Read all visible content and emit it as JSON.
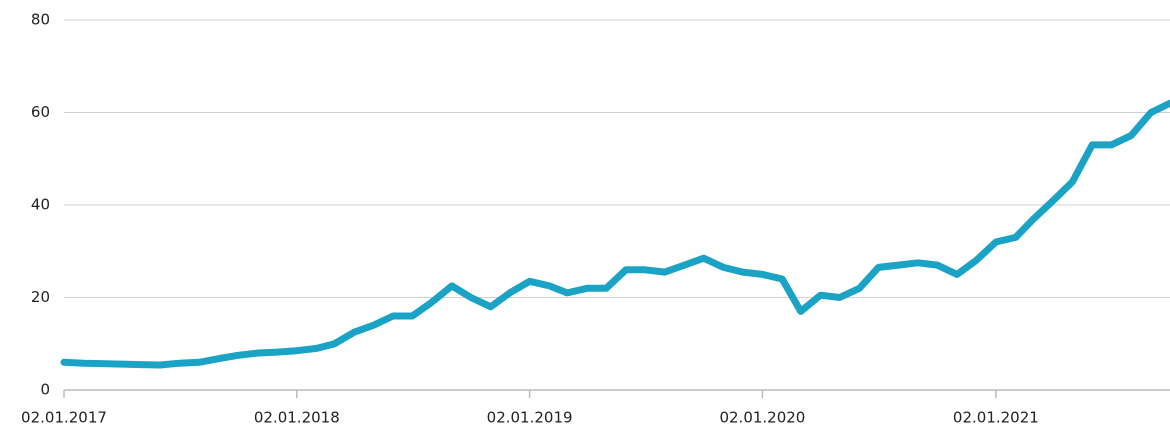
{
  "chart_data": {
    "type": "line",
    "x": [
      "02.01.2017",
      "02.02.2017",
      "02.03.2017",
      "02.04.2017",
      "02.05.2017",
      "02.06.2017",
      "02.07.2017",
      "02.08.2017",
      "02.09.2017",
      "02.10.2017",
      "02.11.2017",
      "02.12.2017",
      "02.01.2018",
      "02.02.2018",
      "02.03.2018",
      "02.04.2018",
      "02.05.2018",
      "02.06.2018",
      "02.07.2018",
      "02.08.2018",
      "02.09.2018",
      "02.10.2018",
      "02.11.2018",
      "02.12.2018",
      "02.01.2019",
      "02.02.2019",
      "02.03.2019",
      "02.04.2019",
      "02.05.2019",
      "02.06.2019",
      "02.07.2019",
      "02.08.2019",
      "02.09.2019",
      "02.10.2019",
      "02.11.2019",
      "02.12.2019",
      "02.01.2020",
      "02.02.2020",
      "02.03.2020",
      "02.04.2020",
      "02.05.2020",
      "02.06.2020",
      "02.07.2020",
      "02.08.2020",
      "02.09.2020",
      "02.10.2020",
      "02.11.2020",
      "02.12.2020",
      "02.01.2021",
      "02.02.2021",
      "02.03.2021",
      "02.04.2021",
      "02.05.2021",
      "02.06.2021",
      "02.07.2021",
      "02.08.2021",
      "02.09.2021",
      "02.10.2021"
    ],
    "values": [
      6,
      5.8,
      5.7,
      5.6,
      5.5,
      5.4,
      5.8,
      6,
      6.8,
      7.5,
      8,
      8.2,
      8.5,
      9,
      10,
      12.5,
      14,
      16,
      16,
      19,
      22.5,
      20,
      18,
      21,
      23.5,
      22.5,
      21,
      22,
      22,
      26,
      26,
      25.5,
      27,
      28.5,
      26.5,
      25.5,
      25,
      24,
      17,
      20.5,
      20,
      22,
      26.5,
      27,
      27.5,
      27,
      25,
      28,
      32,
      33,
      37,
      41,
      45,
      53,
      53,
      55,
      60,
      62
    ],
    "color": "#1aa3c4",
    "xlim": [
      "02.01.2017",
      "02.10.2021"
    ],
    "xticks": [
      "02.01.2017",
      "02.01.2018",
      "02.01.2019",
      "02.01.2020",
      "02.01.2021"
    ],
    "ylim": [
      0,
      80
    ],
    "yticks": [
      0,
      20,
      40,
      60,
      80
    ],
    "grid": true
  }
}
